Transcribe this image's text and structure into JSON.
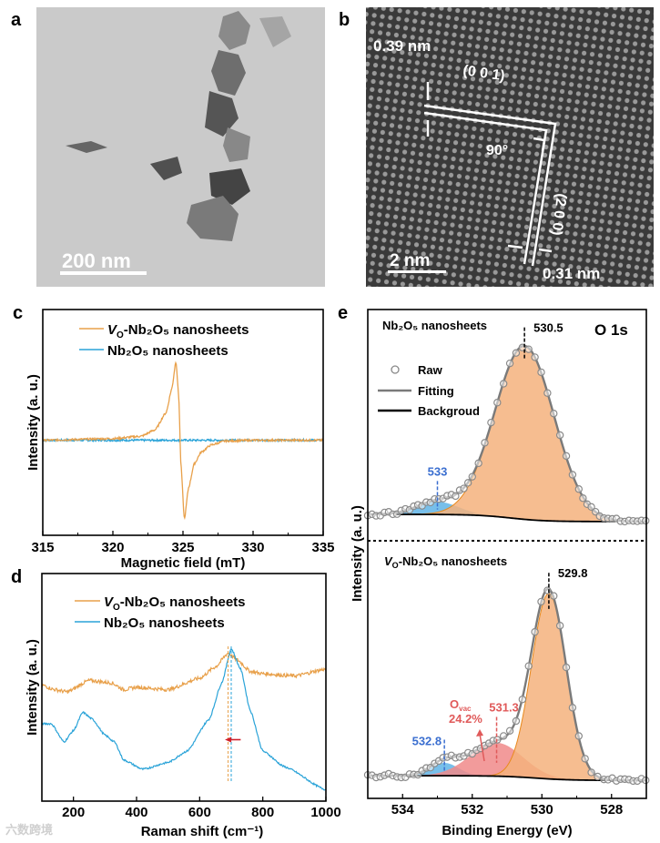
{
  "panels": {
    "a": {
      "letter": "a",
      "scale_bar": "200 nm"
    },
    "b": {
      "letter": "b",
      "d_001": "0.39 nm",
      "plane_001": "(0 0 1)",
      "angle": "90°",
      "plane_200": "(2 0 0)",
      "d_200": "0.31 nm",
      "scale_bar": "2 nm"
    },
    "c": {
      "letter": "c"
    },
    "d": {
      "letter": "d"
    },
    "e": {
      "letter": "e"
    }
  },
  "watermark": "六数跨境",
  "colors": {
    "orange": "#e8a04a",
    "blue": "#2aa3d8",
    "red": "#e0463c",
    "fit": "#7a7a7a",
    "bg_line": "#000000",
    "blue_label": "#3b6fd0",
    "red_label": "#e05a5a"
  },
  "chart_data": [
    {
      "id": "c",
      "type": "line",
      "xlabel": "Magnetic field (mT)",
      "ylabel": "Intensity (a. u.)",
      "xlim": [
        315,
        335
      ],
      "ylim": [
        -1.2,
        1.65
      ],
      "xticks": [
        "315",
        "320",
        "325",
        "330",
        "335"
      ],
      "series": [
        {
          "name": {
            "italic": "V",
            "sub": "O",
            "rest": "-Nb₂O₅ nanosheets"
          },
          "color": "#e8a04a",
          "x": [
            315,
            320,
            322,
            323,
            323.8,
            324.2,
            324.5,
            324.7,
            324.85,
            325.1,
            325.4,
            325.8,
            326.3,
            327,
            328,
            330,
            335
          ],
          "y": [
            0,
            0.02,
            0.05,
            0.13,
            0.35,
            0.65,
            1.0,
            0.55,
            -0.3,
            -1.0,
            -0.6,
            -0.3,
            -0.15,
            -0.06,
            -0.01,
            0,
            0
          ]
        },
        {
          "name": {
            "rest": "Nb₂O₅ nanosheets"
          },
          "color": "#2aa3d8",
          "x": [
            315,
            335
          ],
          "y": [
            0,
            0
          ]
        }
      ]
    },
    {
      "id": "d",
      "type": "line",
      "xlabel": "Raman shift (cm⁻¹)",
      "ylabel": "Intensity (a. u.)",
      "xlim": [
        100,
        1000
      ],
      "ylim": [
        0,
        100
      ],
      "xticks": [
        "200",
        "400",
        "600",
        "800",
        "1000"
      ],
      "series": [
        {
          "name": {
            "italic": "V",
            "sub": "O",
            "rest": "-Nb₂O₅ nanosheets"
          },
          "color": "#e8a04a",
          "x": [
            100,
            140,
            180,
            250,
            320,
            360,
            400,
            500,
            600,
            650,
            690,
            720,
            760,
            800,
            900,
            1000
          ],
          "y": [
            51,
            49,
            48,
            53,
            52,
            49,
            50,
            49,
            54,
            59,
            65,
            62,
            57,
            56,
            55,
            58
          ]
        },
        {
          "name": {
            "rest": "Nb₂O₅ nanosheets"
          },
          "color": "#2aa3d8",
          "x": [
            100,
            130,
            170,
            200,
            230,
            260,
            300,
            330,
            360,
            420,
            500,
            560,
            630,
            670,
            700,
            730,
            760,
            800,
            870,
            1000
          ],
          "y": [
            34,
            34,
            26,
            31,
            39,
            36,
            29,
            26,
            18,
            14,
            17,
            22,
            36,
            52,
            67,
            58,
            40,
            22,
            15,
            5
          ]
        }
      ],
      "annotations": {
        "dashed_orange_x": 690,
        "dashed_blue_x": 700,
        "shift_arrow": [
          730,
          680
        ]
      }
    },
    {
      "id": "e",
      "type": "area",
      "title": "O 1s",
      "xlabel": "Binding Energy (eV)",
      "ylabel": "Intensity (a. u.)",
      "xlim": [
        535,
        527
      ],
      "ylim": [
        0,
        100
      ],
      "xticks": [
        "534",
        "532",
        "530",
        "528"
      ],
      "legend": {
        "raw": "Raw",
        "fit": "Fitting",
        "bg": "Backgroud"
      },
      "panels": [
        {
          "label": "Nb₂O₅ nanosheets",
          "background": [
            11.4,
            8.3
          ],
          "peaks": [
            {
              "center": 530.5,
              "label": "530.5",
              "amplitude": 75,
              "sigma": 0.85,
              "color": "#f4b27d"
            },
            {
              "center": 533,
              "label": "533",
              "amplitude": 5.5,
              "sigma": 0.6,
              "color": "#5fb4e6"
            }
          ]
        },
        {
          "label": {
            "italic": "V",
            "sub": "O",
            "rest": "-Nb₂O₅ nanosheets"
          },
          "background": [
            8.8,
            7.0
          ],
          "peaks": [
            {
              "center": 529.8,
              "label": "529.8",
              "amplitude": 72,
              "sigma": 0.5,
              "color": "#f4b27d"
            },
            {
              "center": 531.3,
              "label": "531.3",
              "amplitude": 13,
              "sigma": 0.75,
              "color": "#f08a8a"
            },
            {
              "center": 532.8,
              "label": "532.8",
              "amplitude": 5,
              "sigma": 0.4,
              "color": "#5fb4e6"
            }
          ],
          "ovac_label": "O",
          "ovac_sub": "vac",
          "ovac_percent": "24.2%"
        }
      ]
    }
  ]
}
